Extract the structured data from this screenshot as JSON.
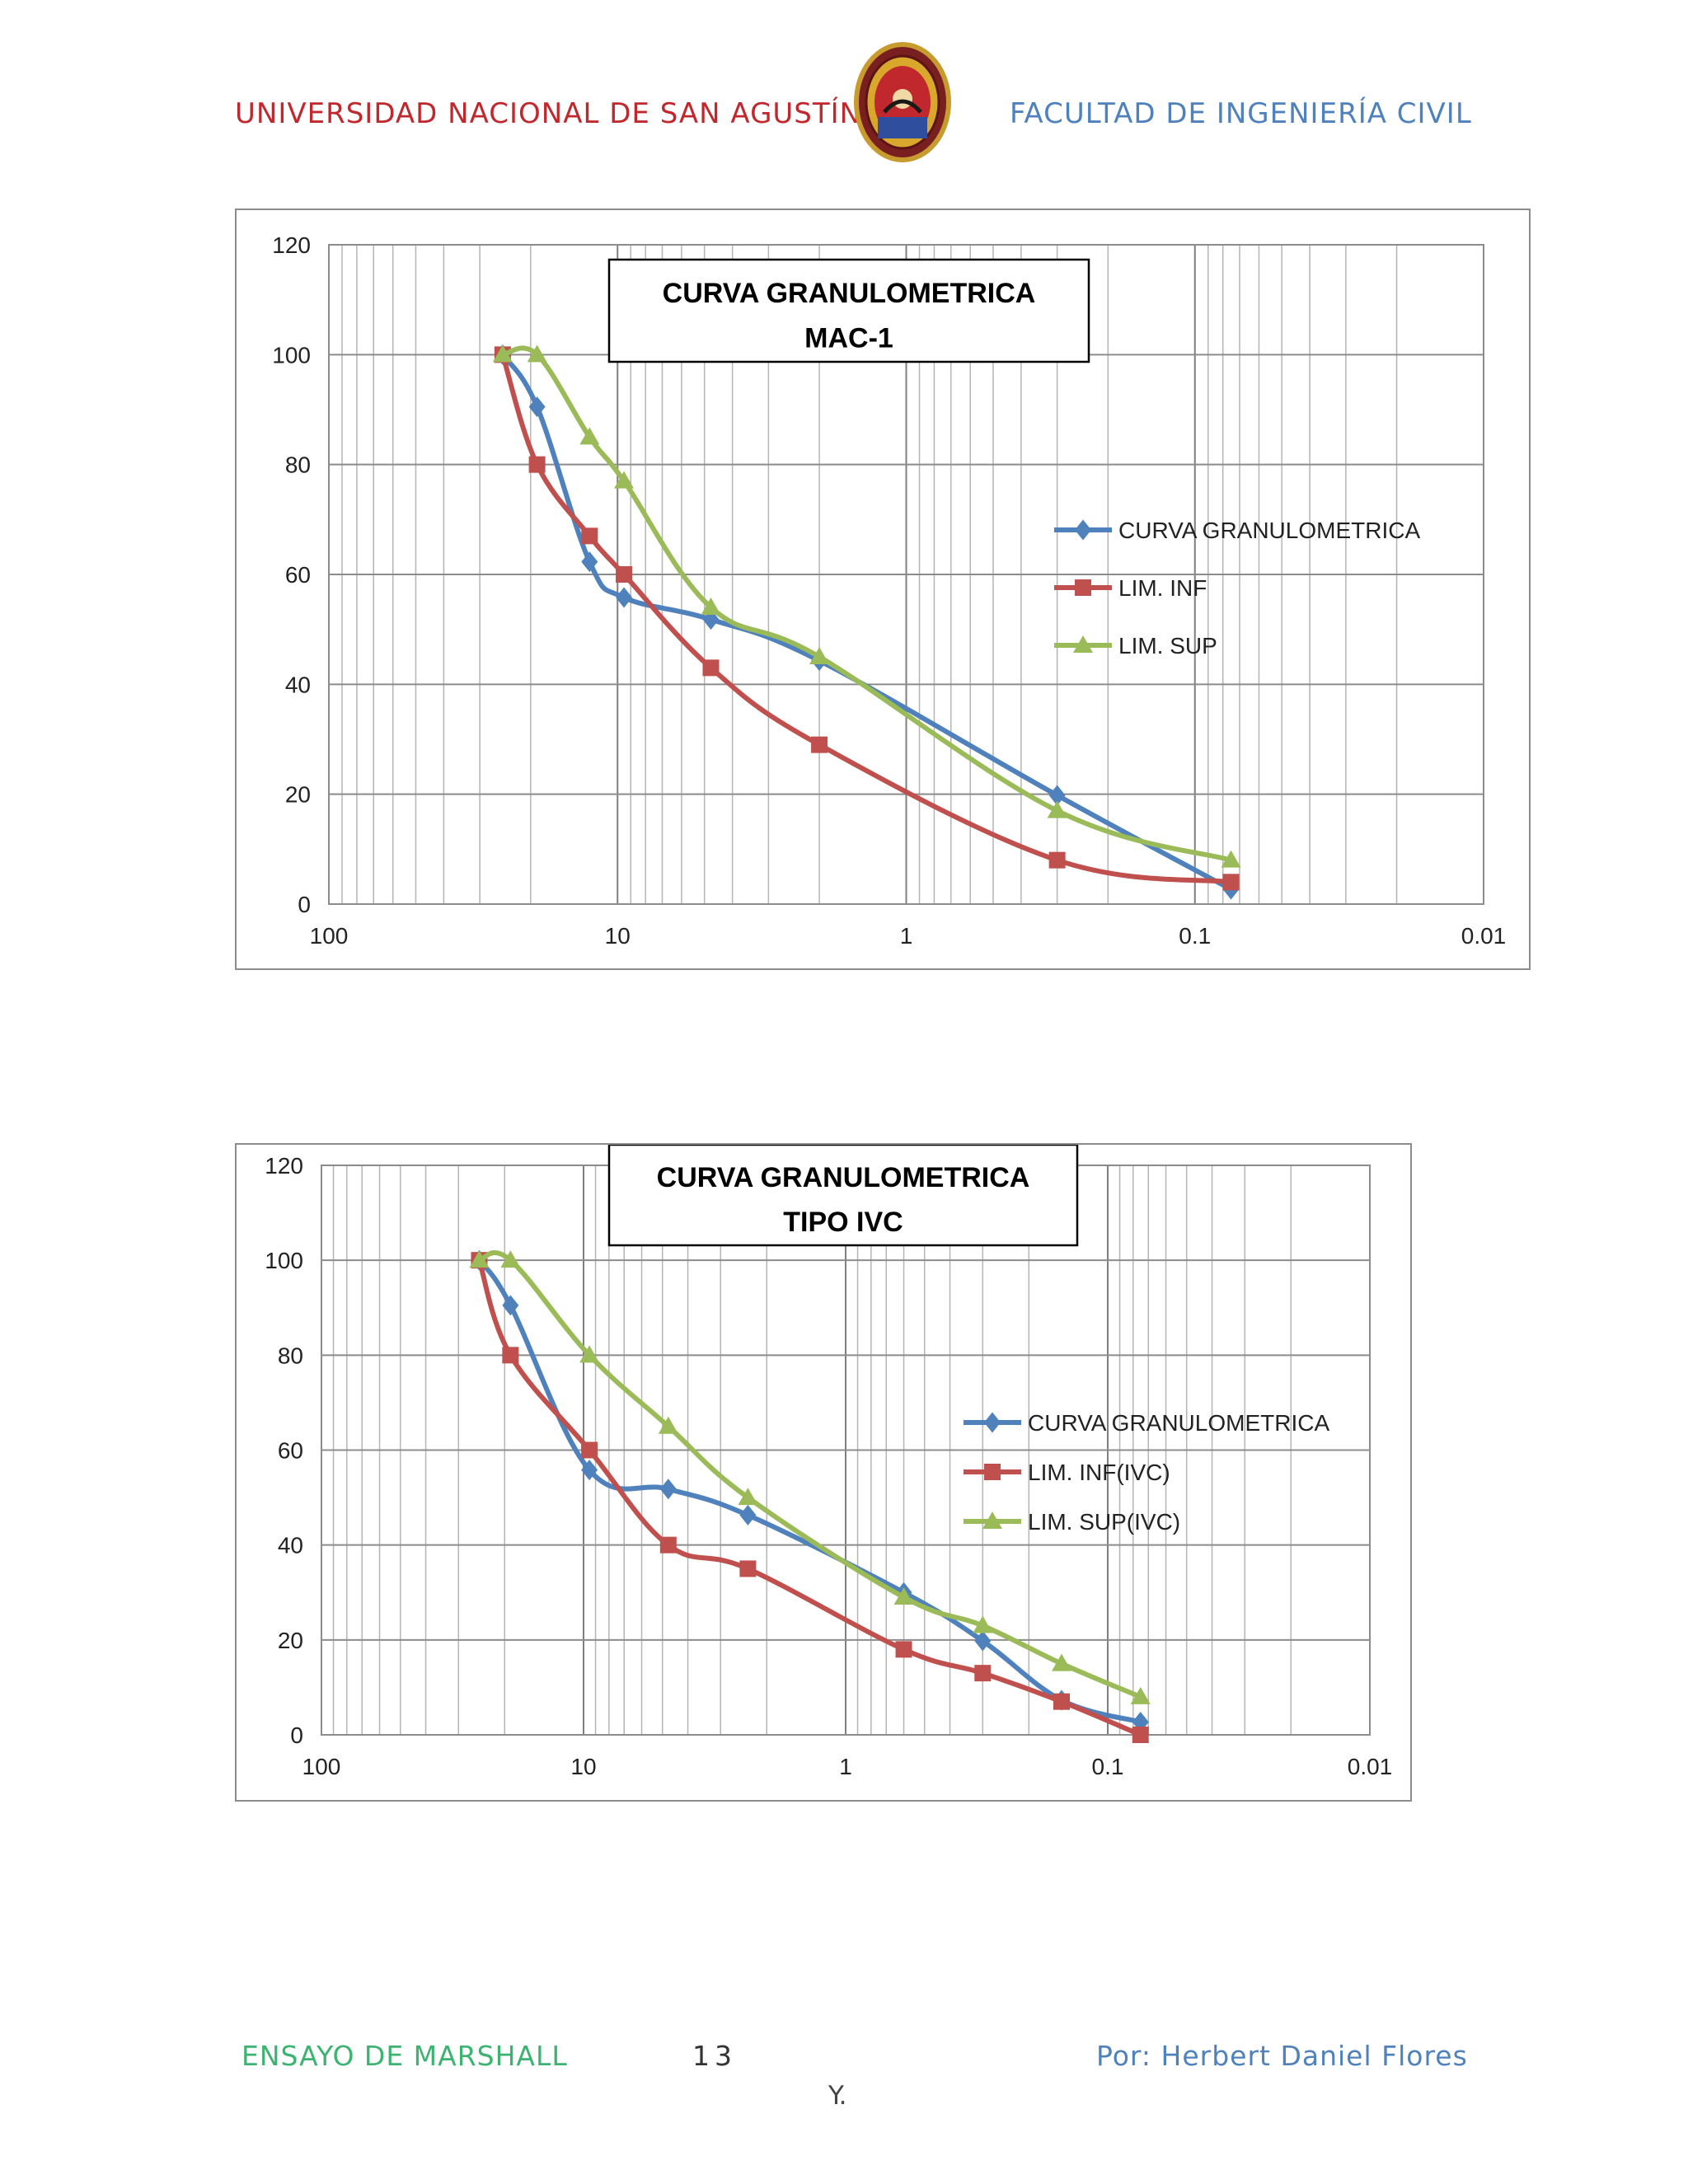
{
  "header": {
    "university": "UNIVERSIDAD NACIONAL DE SAN AGUSTÍN",
    "faculty": "FACULTAD DE INGENIERÍA CIVIL",
    "seal_icon": "university-seal-icon"
  },
  "footer": {
    "left": "ENSAYO DE MARSHALL",
    "page": "13",
    "right": "Por: Herbert Daniel Flores",
    "continuation": "Y."
  },
  "colors": {
    "blue": "#4f81bd",
    "red": "#c0504d",
    "green": "#9bbb59",
    "grid": "#a6a6a6"
  },
  "chart_data": [
    {
      "type": "line",
      "title": "CURVA GRANULOMETRICA",
      "subtitle": "MAC-1",
      "x_scale": "log",
      "x_reversed": true,
      "xlim": [
        100,
        0.01
      ],
      "ylim": [
        0,
        120
      ],
      "x_ticks": [
        "100",
        "10",
        "1",
        "0.1",
        "0.01"
      ],
      "y_ticks": [
        "0",
        "20",
        "40",
        "60",
        "80",
        "100",
        "120"
      ],
      "legend_position": "right",
      "series": [
        {
          "name": "CURVA GRANULOMETRICA",
          "color": "#4f81bd",
          "marker": "diamond",
          "x": [
            25,
            19,
            12.5,
            9.5,
            4.75,
            2,
            0.3,
            0.075
          ],
          "y": [
            100,
            90.5,
            62.3,
            55.8,
            51.8,
            44.3,
            19.8,
            2.7
          ]
        },
        {
          "name": "LIM. INF",
          "color": "#c0504d",
          "marker": "square",
          "x": [
            25,
            19,
            12.5,
            9.5,
            4.75,
            2,
            0.3,
            0.075
          ],
          "y": [
            100,
            80,
            67,
            60,
            43,
            29,
            8,
            4
          ]
        },
        {
          "name": "LIM. SUP",
          "color": "#9bbb59",
          "marker": "triangle",
          "x": [
            25,
            19,
            12.5,
            9.5,
            4.75,
            2,
            0.3,
            0.075
          ],
          "y": [
            100,
            100,
            85,
            77,
            54,
            45,
            17,
            8
          ]
        }
      ]
    },
    {
      "type": "line",
      "title": "CURVA GRANULOMETRICA",
      "subtitle": "TIPO IVC",
      "x_scale": "log",
      "x_reversed": true,
      "xlim": [
        100,
        0.01
      ],
      "ylim": [
        0,
        120
      ],
      "x_ticks": [
        "100",
        "10",
        "1",
        "0.1",
        "0.01"
      ],
      "y_ticks": [
        "0",
        "20",
        "40",
        "60",
        "80",
        "100",
        "120"
      ],
      "legend_position": "right",
      "series": [
        {
          "name": "CURVA GRANULOMETRICA",
          "color": "#4f81bd",
          "marker": "diamond",
          "x": [
            25,
            19,
            9.5,
            4.75,
            2.36,
            0.6,
            0.3,
            0.15,
            0.075
          ],
          "y": [
            100,
            90.5,
            55.8,
            51.8,
            46.3,
            30,
            19.8,
            7.3,
            2.7
          ]
        },
        {
          "name": "LIM. INF(IVC)",
          "color": "#c0504d",
          "marker": "square",
          "x": [
            25,
            19,
            9.5,
            4.75,
            2.36,
            0.6,
            0.3,
            0.15,
            0.075
          ],
          "y": [
            100,
            80,
            60,
            40,
            35,
            18,
            13,
            7,
            0
          ]
        },
        {
          "name": "LIM. SUP(IVC)",
          "color": "#9bbb59",
          "marker": "triangle",
          "x": [
            25,
            19,
            9.5,
            4.75,
            2.36,
            0.6,
            0.3,
            0.15,
            0.075
          ],
          "y": [
            100,
            100,
            80,
            65,
            50,
            29,
            23,
            15,
            8
          ]
        }
      ]
    }
  ]
}
